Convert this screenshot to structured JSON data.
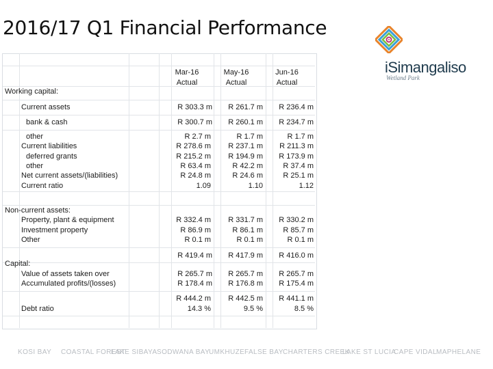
{
  "title": "2016/17 Q1 Financial Performance",
  "brand": {
    "name": "iSimangaliso",
    "sub": "Wetland Park"
  },
  "columns": [
    {
      "month": "Mar-16",
      "kind": "Actual"
    },
    {
      "month": "May-16",
      "kind": "Actual"
    },
    {
      "month": "Jun-16",
      "kind": "Actual"
    }
  ],
  "sections": {
    "working_capital": "Working capital:",
    "non_current": "Non-current assets:",
    "capital": "Capital:"
  },
  "rows": {
    "current_assets": {
      "label": "Current assets",
      "values": [
        "R 303.3 m",
        "R 261.7 m",
        "R 236.4 m"
      ]
    },
    "bank_cash": {
      "label": "bank & cash",
      "values": [
        "R 300.7 m",
        "R 260.1 m",
        "R 234.7 m"
      ]
    },
    "other": {
      "label": "other",
      "values": [
        "R 2.7 m",
        "R 1.7 m",
        "R 1.7 m"
      ]
    },
    "current_liabilities": {
      "label": "Current liabilities",
      "values": [
        "R 278.6 m",
        "R 237.1 m",
        "R 211.3 m"
      ]
    },
    "deferred_grants": {
      "label": "deferred grants",
      "values": [
        "R 215.2 m",
        "R 194.9 m",
        "R 173.9 m"
      ]
    },
    "other_liab": {
      "label": "other",
      "values": [
        "R 63.4 m",
        "R 42.2 m",
        "R 37.4 m"
      ]
    },
    "net_current": {
      "label": "Net current assets/(liabilities)",
      "values": [
        "R 24.8 m",
        "R 24.6 m",
        "R 25.1 m"
      ]
    },
    "current_ratio": {
      "label": "Current ratio",
      "values": [
        "1.09",
        "1.10",
        "1.12"
      ]
    },
    "ppe": {
      "label": "Property, plant & equipment",
      "values": [
        "R 332.4 m",
        "R 331.7 m",
        "R 330.2 m"
      ]
    },
    "investment_property": {
      "label": "Investment property",
      "values": [
        "R 86.9 m",
        "R 86.1 m",
        "R 85.7 m"
      ]
    },
    "other_nc": {
      "label": "Other",
      "values": [
        "R 0.1 m",
        "R 0.1 m",
        "R 0.1 m"
      ]
    },
    "nc_total": {
      "label": "",
      "values": [
        "R 419.4 m",
        "R 417.9 m",
        "R 416.0 m"
      ]
    },
    "assets_taken_over": {
      "label": "Value of assets taken over",
      "values": [
        "R 265.7 m",
        "R 265.7 m",
        "R 265.7 m"
      ]
    },
    "accumulated": {
      "label": "Accumulated profits/(losses)",
      "values": [
        "R 178.4 m",
        "R 176.8 m",
        "R 175.4 m"
      ]
    },
    "capital_total": {
      "label": "",
      "values": [
        "R 444.2 m",
        "R 442.5 m",
        "R 441.1 m"
      ]
    },
    "debt_ratio": {
      "label": "Debt ratio",
      "values": [
        "14.3 %",
        "9.5 %",
        "8.5 %"
      ]
    }
  },
  "footer": [
    "KOSI BAY",
    "COASTAL FOREST",
    "LAKE SIBAYA",
    "SODWANA BAY",
    "UMKHUZE",
    "FALSE BAY",
    "CHARTERS CREEK",
    "LAKE ST LUCIA",
    "CAPE VIDAL",
    "MAPHELANE"
  ]
}
